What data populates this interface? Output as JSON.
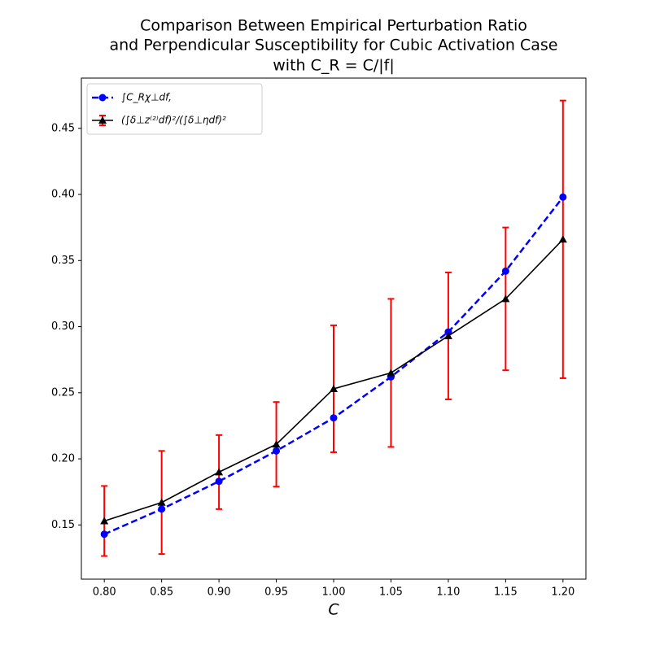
{
  "chart_data": {
    "type": "line",
    "title": [
      "Comparison Between Empirical Perturbation Ratio",
      "and Perpendicular Susceptibility for Cubic Activation Case",
      "with C_R = C/|f|"
    ],
    "xlabel": "C",
    "x": [
      0.8,
      0.85,
      0.9,
      0.95,
      1.0,
      1.05,
      1.1,
      1.15,
      1.2
    ],
    "series": [
      {
        "name": "∫C_Rχ⊥df,",
        "color": "#0000ff",
        "dash": true,
        "marker": "circle",
        "values": [
          0.143,
          0.162,
          0.183,
          0.206,
          0.231,
          0.262,
          0.296,
          0.342,
          0.398
        ]
      },
      {
        "name": "(∫δ⊥z⁽²⁾df)²/(∫δ⊥ηdf)²",
        "color": "#000000",
        "dash": false,
        "marker": "triangle",
        "error_color": "#ff0000",
        "values": [
          0.153,
          0.167,
          0.19,
          0.211,
          0.253,
          0.265,
          0.293,
          0.321,
          0.366
        ],
        "errors": [
          0.0265,
          0.039,
          0.028,
          0.032,
          0.048,
          0.056,
          0.048,
          0.054,
          0.105
        ]
      }
    ],
    "xlim": [
      0.78,
      1.22
    ],
    "xticks": [
      {
        "value": 0.8,
        "label": "0.80"
      },
      0.85,
      {
        "value": 0.9,
        "label": "0.90"
      },
      0.95,
      {
        "value": 1.0,
        "label": "1.00"
      },
      1.05,
      {
        "value": 1.1,
        "label": "1.10"
      },
      1.15,
      {
        "value": 1.2,
        "label": "1.20"
      }
    ],
    "ylim": [
      0.109,
      0.488
    ],
    "yticks": [
      0.15,
      {
        "value": 0.2,
        "label": "0.20"
      },
      0.25,
      {
        "value": 0.3,
        "label": "0.30"
      },
      0.35,
      {
        "value": 0.4,
        "label": "0.40"
      },
      0.45
    ],
    "legend": "upper left"
  }
}
